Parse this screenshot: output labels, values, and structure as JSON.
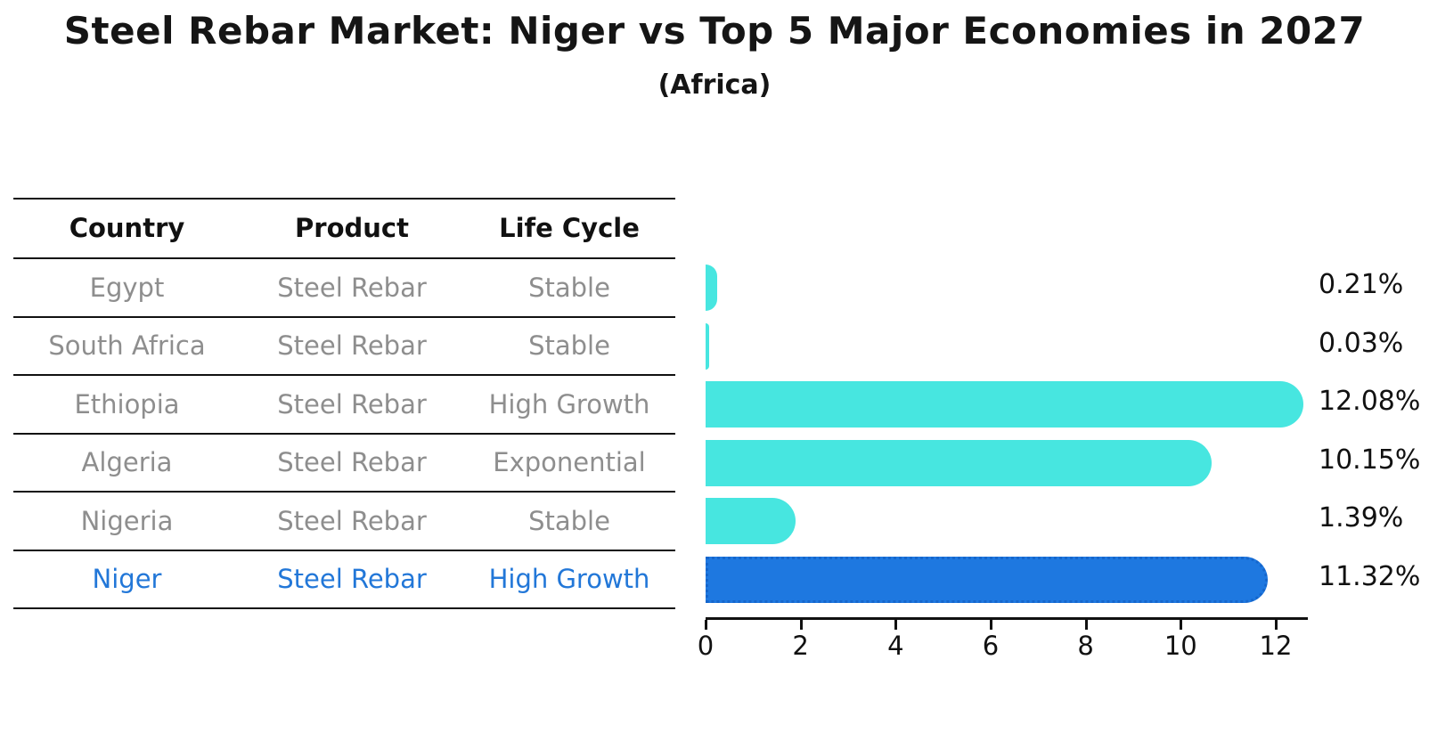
{
  "title": "Steel Rebar Market: Niger vs Top 5 Major Economies in 2027",
  "subtitle": "(Africa)",
  "table": {
    "headers": [
      "Country",
      "Product",
      "Life Cycle"
    ],
    "rows": [
      {
        "country": "Egypt",
        "product": "Steel Rebar",
        "life_cycle": "Stable",
        "highlight": false
      },
      {
        "country": "South Africa",
        "product": "Steel Rebar",
        "life_cycle": "Stable",
        "highlight": false
      },
      {
        "country": "Ethiopia",
        "product": "Steel Rebar",
        "life_cycle": "High Growth",
        "highlight": false
      },
      {
        "country": "Algeria",
        "product": "Steel Rebar",
        "life_cycle": "Exponential",
        "highlight": false
      },
      {
        "country": "Nigeria",
        "product": "Steel Rebar",
        "life_cycle": "Stable",
        "highlight": false
      },
      {
        "country": "Niger",
        "product": "Steel Rebar",
        "life_cycle": "High Growth",
        "highlight": true
      }
    ]
  },
  "chart_data": {
    "type": "bar",
    "orientation": "horizontal",
    "title": "Steel Rebar Market: Niger vs Top 5 Major Economies in 2027",
    "subtitle": "(Africa)",
    "categories": [
      "Egypt",
      "South Africa",
      "Ethiopia",
      "Algeria",
      "Nigeria",
      "Niger"
    ],
    "values": [
      0.21,
      0.03,
      12.08,
      10.15,
      1.39,
      11.32
    ],
    "value_labels": [
      "0.21%",
      "0.03%",
      "12.08%",
      "10.15%",
      "1.39%",
      "11.32%"
    ],
    "highlight_index": 5,
    "x_ticks": [
      0,
      2,
      4,
      6,
      8,
      10,
      12
    ],
    "xlim": [
      0,
      12.7
    ],
    "grid": false,
    "legend": false,
    "xlabel": "",
    "ylabel": ""
  },
  "colors": {
    "bar": "#47E6E0",
    "highlight_bar": "#1E78E0",
    "highlight_border": "#1566cc",
    "highlight_text": "#2277d8",
    "muted_text": "#8e8e8e",
    "text": "#111111"
  }
}
